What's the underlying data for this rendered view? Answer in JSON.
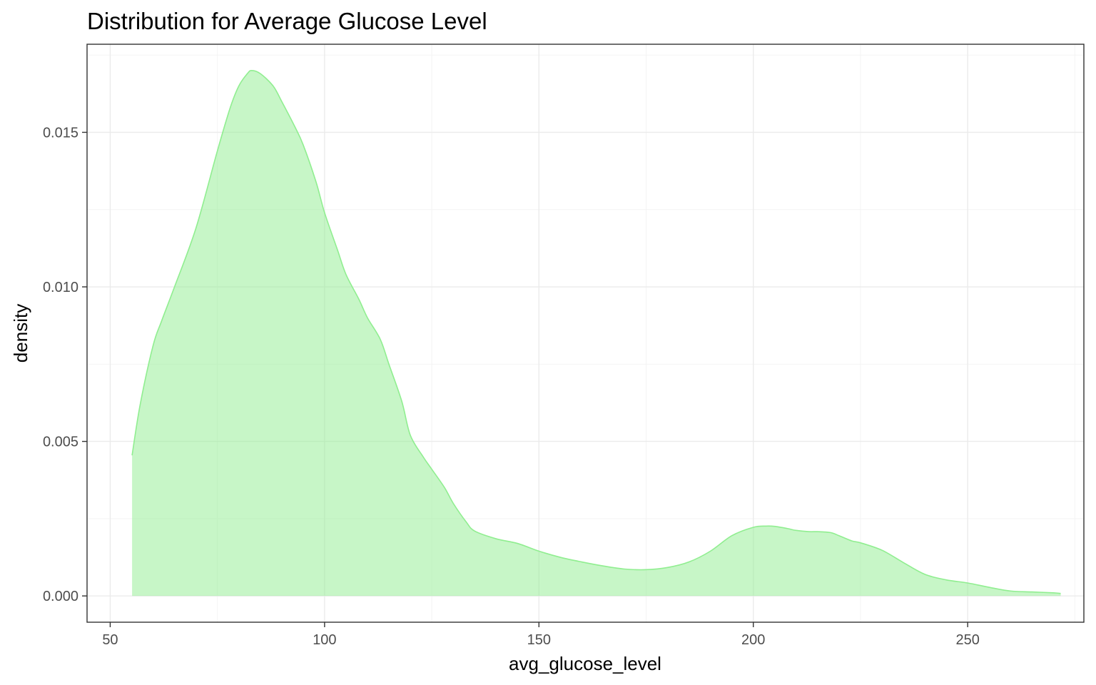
{
  "chart_data": {
    "type": "area",
    "title": "Distribution for Average Glucose Level",
    "xlabel": "avg_glucose_level",
    "ylabel": "density",
    "xlim": [
      44.6,
      277.1
    ],
    "ylim": [
      -0.00085,
      0.01785
    ],
    "x_ticks": [
      50,
      100,
      150,
      200,
      250
    ],
    "x_tick_labels": [
      "50",
      "100",
      "150",
      "200",
      "250"
    ],
    "y_ticks": [
      0.0,
      0.005,
      0.01,
      0.015
    ],
    "y_tick_labels": [
      "0.000",
      "0.005",
      "0.010",
      "0.015"
    ],
    "grid": true,
    "legend": "none",
    "fill_color": "#90ee90",
    "fill_opacity": 0.5,
    "line_color": "#90ee90",
    "series": [
      {
        "x": [
          55.1,
          57,
          60,
          62,
          65,
          70,
          75,
          78,
          80,
          82,
          83,
          85,
          88,
          90,
          93,
          95,
          98,
          100,
          103,
          105,
          108,
          110,
          113,
          115,
          118,
          120,
          123,
          125,
          128,
          130,
          133,
          135,
          140,
          145,
          150,
          155,
          160,
          165,
          170,
          175,
          180,
          185,
          190,
          195,
          200,
          203,
          205,
          208,
          210,
          213,
          215,
          218,
          220,
          223,
          225,
          230,
          235,
          240,
          245,
          250,
          255,
          260,
          265,
          270,
          271.7
        ],
        "y": [
          0.00455,
          0.0062,
          0.0081,
          0.0089,
          0.01,
          0.0119,
          0.0144,
          0.0158,
          0.0165,
          0.0169,
          0.017,
          0.0169,
          0.0165,
          0.016,
          0.0152,
          0.0146,
          0.0134,
          0.0124,
          0.0112,
          0.0104,
          0.0096,
          0.009,
          0.0083,
          0.0075,
          0.0063,
          0.0052,
          0.0045,
          0.0041,
          0.0035,
          0.003,
          0.0024,
          0.0021,
          0.00185,
          0.0017,
          0.00145,
          0.00125,
          0.0011,
          0.00097,
          0.00087,
          0.00085,
          0.00092,
          0.0011,
          0.00145,
          0.00195,
          0.00222,
          0.00226,
          0.00225,
          0.00218,
          0.00212,
          0.00208,
          0.00208,
          0.00205,
          0.00195,
          0.00178,
          0.00172,
          0.00148,
          0.00108,
          0.0007,
          0.00052,
          0.00042,
          0.00028,
          0.00016,
          0.00013,
          0.0001,
          8e-05
        ]
      }
    ]
  }
}
